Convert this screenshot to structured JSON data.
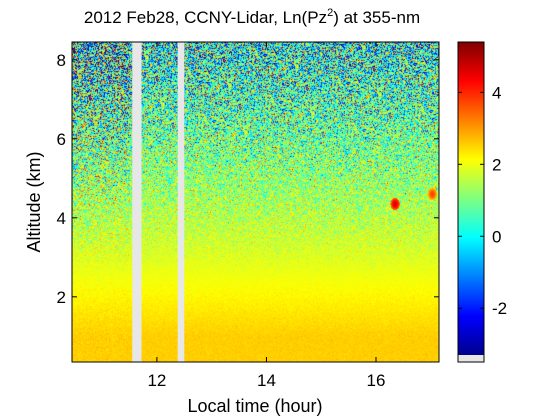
{
  "chart_data": {
    "type": "heatmap",
    "title": "2012 Feb28, CCNY-Lidar, Ln(Pz",
    "title_superscript": "2",
    "title_suffix": ") at 355-nm",
    "xlabel": "Local time (hour)",
    "ylabel": "Altitude (km)",
    "xlim": [
      10.45,
      17.15
    ],
    "ylim": [
      0.35,
      8.45
    ],
    "xticks": [
      12,
      14,
      16
    ],
    "xtick_labels": [
      "12",
      "14",
      "16"
    ],
    "yticks": [
      2,
      4,
      6,
      8
    ],
    "ytick_labels": [
      "2",
      "4",
      "6",
      "8"
    ],
    "colorbar": {
      "colormap": "jet",
      "range": [
        -3.3,
        5.4
      ],
      "ticks": [
        -2,
        0,
        2,
        4
      ],
      "tick_labels": [
        "-2",
        "0",
        "2",
        "4"
      ]
    },
    "data_gaps_hour": [
      [
        11.55,
        11.72
      ],
      [
        12.38,
        12.5
      ]
    ],
    "features": [
      {
        "type": "high-value patch",
        "x": 16.35,
        "y": 4.35,
        "value": 4.6
      },
      {
        "type": "high-value patch",
        "x": 17.03,
        "y": 4.6,
        "value": 3.8
      }
    ],
    "grid": false,
    "legend": "none"
  }
}
